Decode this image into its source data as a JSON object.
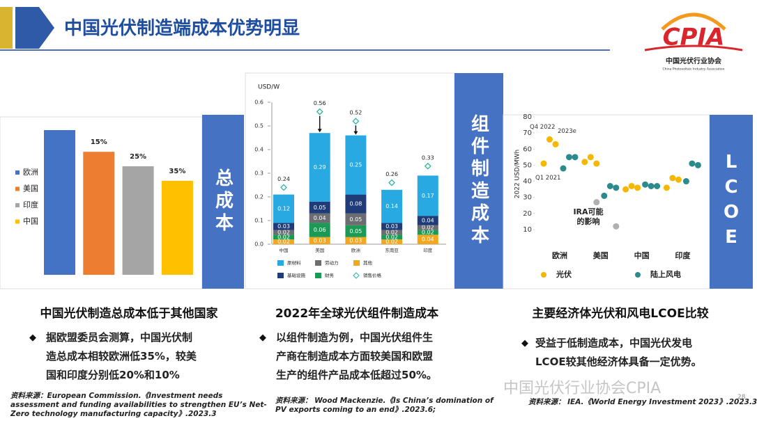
{
  "header": {
    "title": "中国光伏制造端成本优势明显"
  },
  "logo": {
    "text": "CPIA",
    "name_cn": "中国光伏行业协会",
    "name_en": "China Photovoltaic Industry Association"
  },
  "panels": [
    {
      "side_label": "总成本",
      "caption": "中国光伏制造总成本低于其他国家",
      "bullet": "据欧盟委员会测算，中国光伏制造总成本相较欧洲低35%，较美国和印度分别低20%和10%",
      "source": "资料来源：European Commission.《Investment needs assessment and funding availabilities to strengthen EU’s Net-Zero technology manufacturing capacity》.2023.3"
    },
    {
      "side_label": "组件制造成本",
      "caption": "2022年全球光伏组件制造成本",
      "bullet": "以组件制造为例，中国光伏组件生产商在制造成本方面较美国和欧盟生产的组件产品成本低超过50%。",
      "source": "资料来源： Wood Mackenzie.《Is China’s domination of PV exports coming to an end》.2023.6;"
    },
    {
      "side_label": "LCOE",
      "caption": "主要经济体光伏和风电LCOE比较",
      "bullet": "受益于低制造成本，中国光伏发电LCOE较其他经济体具备一定优势。",
      "source": "资料来源： IEA.《World Energy Investment 2023》.2023.3"
    }
  ],
  "chart_data": [
    {
      "type": "bar",
      "categories": [
        "欧洲",
        "美国",
        "印度",
        "中国"
      ],
      "values": [
        100,
        85,
        75,
        65
      ],
      "colors": [
        "#4472c4",
        "#ed7d31",
        "#a5a5a5",
        "#ffc000"
      ],
      "annotations": [
        null,
        "15%",
        "25%",
        "35%"
      ],
      "legend": true
    },
    {
      "type": "stacked_bar",
      "y_label": "USD/W",
      "categories": [
        "中国",
        "美国",
        "欧洲",
        "东南亚",
        "印度"
      ],
      "series": [
        {
          "name": "其他",
          "color": "#f2a81d",
          "values": [
            0.02,
            0.03,
            0.03,
            0.02,
            0.04
          ]
        },
        {
          "name": "财务",
          "color": "#1b9a56",
          "values": [
            0.02,
            0.06,
            0.05,
            0.02,
            0.02
          ]
        },
        {
          "name": "劳动力",
          "color": "#6b6d70",
          "values": [
            0.02,
            0.04,
            0.05,
            0.02,
            0.02
          ]
        },
        {
          "name": "基础设施",
          "color": "#1f3c78",
          "values": [
            0.03,
            0.05,
            0.08,
            0.03,
            0.04
          ]
        },
        {
          "name": "原材料",
          "color": "#29a9e1",
          "values": [
            0.12,
            0.29,
            0.25,
            0.14,
            0.17
          ]
        }
      ],
      "markers": {
        "name": "销售价格",
        "color": "#2ab3a6",
        "values": [
          0.24,
          0.56,
          0.52,
          0.26,
          0.33
        ]
      },
      "ylim": [
        0,
        0.6
      ],
      "yticks": [
        {
          "value": 0,
          "label": "0.0"
        },
        0.1,
        0.2,
        0.3,
        0.4,
        0.5,
        0.6
      ]
    },
    {
      "type": "dot",
      "y_label": "2022 USD/MWh",
      "categories": [
        "欧洲",
        "美国",
        "中国",
        "印度"
      ],
      "series": [
        {
          "name": "光伏",
          "color": "#f5b700",
          "values": [
            [
              51,
              66,
              63
            ],
            [
              52,
              55,
              51
            ],
            [
              35,
              37,
              36
            ],
            [
              36,
              42,
              41
            ]
          ]
        },
        {
          "name": "陆上风电",
          "color": "#2b8a8c",
          "values": [
            [
              48,
              55,
              55
            ],
            [
              31,
              37,
              36
            ],
            [
              38,
              37,
              37
            ],
            [
              40,
              51,
              50
            ]
          ]
        },
        {
          "name": "IRA可能的影响",
          "color": "#b0b0b0",
          "legend": false,
          "values": [
            [],
            [
              27,
              12
            ],
            [],
            []
          ]
        }
      ],
      "annotations": [
        "Q4 2022",
        "2023e",
        "Q1 2021"
      ],
      "ylim": [
        5,
        80
      ],
      "yticks": [
        10,
        20,
        30,
        40,
        50,
        60,
        70,
        80
      ]
    }
  ],
  "watermark": "中国光伏行业协会CPIA",
  "page_number": "28"
}
